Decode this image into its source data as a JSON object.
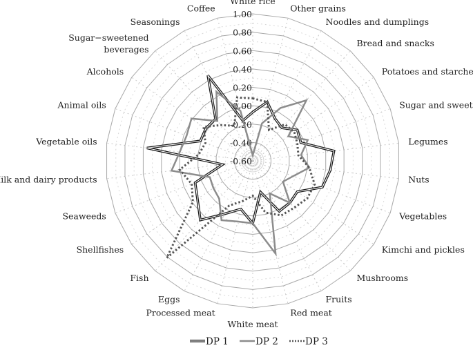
{
  "chart_data": {
    "type": "radar",
    "title": "",
    "rlim": [
      -0.6,
      1.0
    ],
    "ticks": [
      "1.00",
      "0.80",
      "0.60",
      "0.40",
      "0.20",
      "0.00",
      "-0.20",
      "-0.40",
      "-0.60"
    ],
    "tick_values": [
      1.0,
      0.8,
      0.6,
      0.4,
      0.2,
      0.0,
      -0.2,
      -0.4,
      -0.6
    ],
    "categories": [
      "White rice",
      "Other grains",
      "Noodles and dumplings",
      "Bread and snacks",
      "Potatoes and starches",
      "Sugar and sweets",
      "Legumes",
      "Nuts",
      "Vegetables",
      "Kimchi and pickles",
      "Mushrooms",
      "Fruits",
      "Red meat",
      "White meat",
      "Processed meat",
      "Eggs",
      "Fish",
      "Shellfishes",
      "Seaweeds",
      "Milk and dairy products",
      "Vegetable oils",
      "Animal oils",
      "Alcohols",
      "Sugar−sweetened beverages",
      "Seasonings",
      "Coffee"
    ],
    "legend_position": "bottom",
    "series": [
      {
        "name": "DP 1",
        "style": "double",
        "color": "#1a1a1a",
        "values": [
          -0.07,
          0.06,
          -0.08,
          -0.12,
          -0.01,
          -0.04,
          0.29,
          0.25,
          0.21,
          -0.01,
          0.01,
          0.02,
          -0.25,
          0.08,
          -0.06,
          0.05,
          0.26,
          0.13,
          0.07,
          -0.27,
          0.56,
          0.01,
          0.02,
          0.01,
          0.45,
          -0.15
        ]
      },
      {
        "name": "DP 2",
        "style": "solid",
        "color": "#8c8c8c",
        "values": [
          -0.54,
          -0.18,
          0.05,
          0.28,
          -0.13,
          0.04,
          -0.07,
          0.02,
          -0.13,
          -0.2,
          0.01,
          -0.2,
          0.44,
          0.08,
          0.08,
          0.13,
          -0.05,
          -0.08,
          -0.1,
          0.29,
          0.2,
          0.17,
          0.21,
          -0.02,
          0.25,
          -0.04
        ]
      },
      {
        "name": "DP 3",
        "style": "dotted",
        "color": "#555555",
        "values": [
          0.08,
          0.06,
          -0.22,
          -0.07,
          -0.05,
          -0.08,
          -0.1,
          0.02,
          0.12,
          0.12,
          0.08,
          0.07,
          -0.02,
          -0.22,
          -0.15,
          -0.05,
          0.81,
          0.19,
          0.11,
          0.2,
          -0.01,
          -0.05,
          0.05,
          -0.08,
          -0.17,
          0.11
        ]
      }
    ]
  }
}
